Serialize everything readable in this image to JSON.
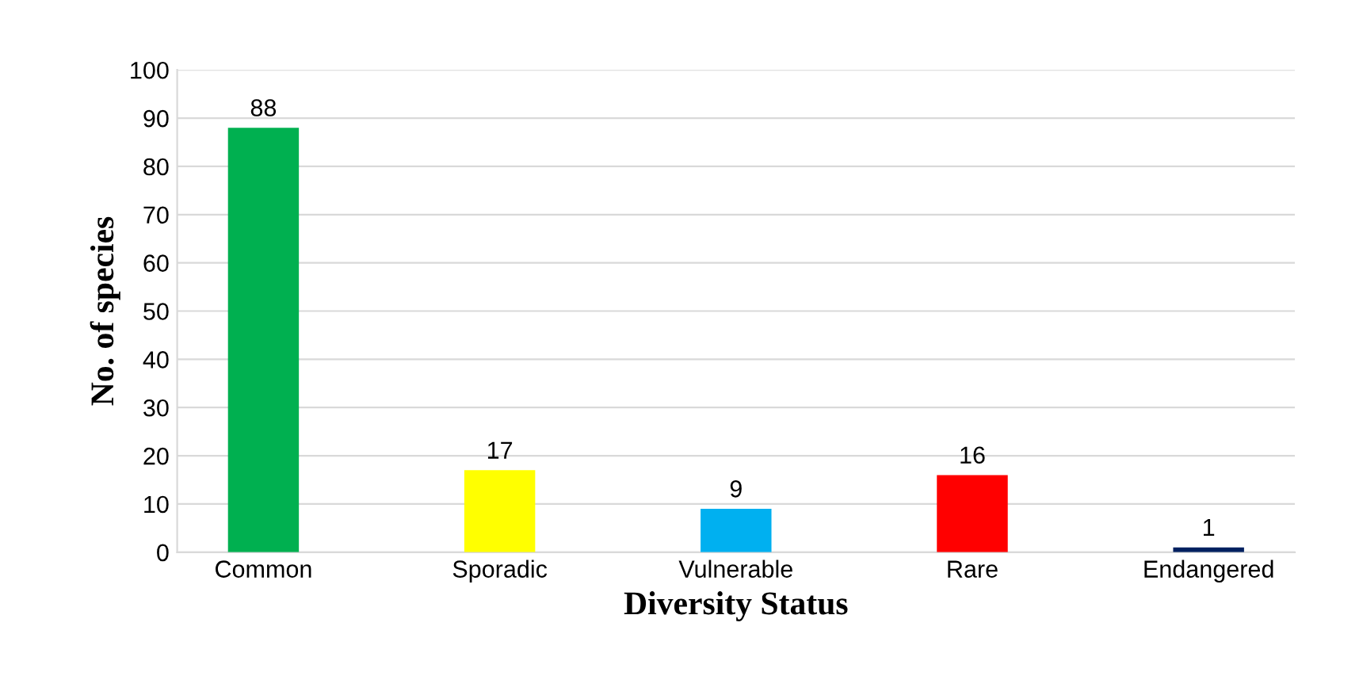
{
  "chart_data": {
    "type": "bar",
    "xlabel": "Diversity Status",
    "ylabel": "No. of species",
    "categories": [
      "Common",
      "Sporadic",
      "Vulnerable",
      "Rare",
      "Endangered"
    ],
    "values": [
      88,
      17,
      9,
      16,
      1
    ],
    "colors": [
      "#00b050",
      "#ffff00",
      "#00b0f0",
      "#ff0000",
      "#002060"
    ],
    "ylim": [
      0,
      100
    ],
    "yticks": [
      0,
      10,
      20,
      30,
      40,
      50,
      60,
      70,
      80,
      90,
      100
    ],
    "grid": "y",
    "data_labels": true
  }
}
